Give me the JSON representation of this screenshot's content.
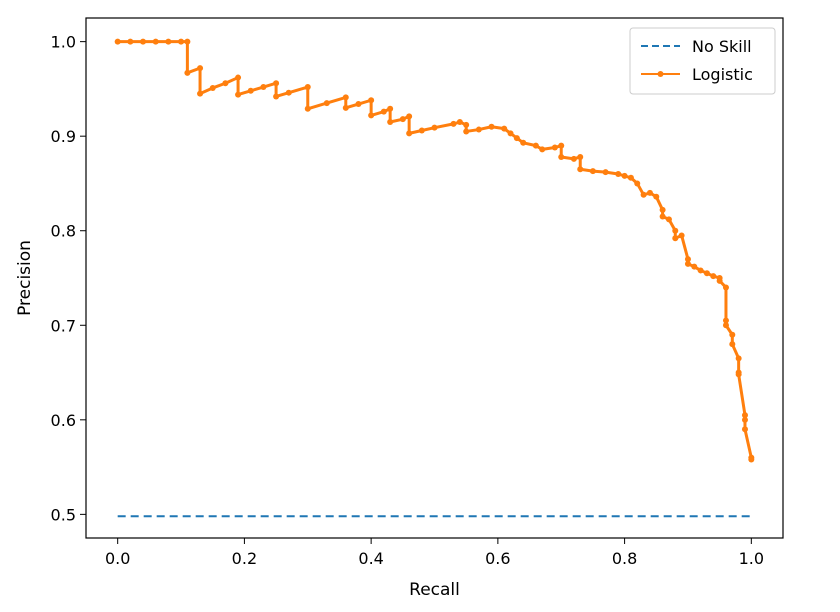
{
  "chart_data": {
    "type": "line",
    "xlabel": "Recall",
    "ylabel": "Precision",
    "xlim": [
      -0.05,
      1.05
    ],
    "ylim": [
      0.475,
      1.025
    ],
    "xticks": [
      0.0,
      0.2,
      0.4,
      0.6,
      0.8,
      1.0
    ],
    "xtick_labels": [
      "0.0",
      "0.2",
      "0.4",
      "0.6",
      "0.8",
      "1.0"
    ],
    "yticks": [
      0.5,
      0.6,
      0.7,
      0.8,
      0.9,
      1.0
    ],
    "ytick_labels": [
      "0.5",
      "0.6",
      "0.7",
      "0.8",
      "0.9",
      "1.0"
    ],
    "grid": false,
    "legend_position": "top-right",
    "series": [
      {
        "name": "No Skill",
        "style": "dashed",
        "color": "#1f77b4",
        "x": [
          0.0,
          1.0
        ],
        "y": [
          0.498,
          0.498
        ]
      },
      {
        "name": "Logistic",
        "style": "solid-marker",
        "color": "#ff7f0e",
        "x": [
          0.0,
          0.02,
          0.04,
          0.06,
          0.08,
          0.1,
          0.11,
          0.11,
          0.13,
          0.13,
          0.15,
          0.17,
          0.19,
          0.19,
          0.21,
          0.23,
          0.25,
          0.25,
          0.27,
          0.3,
          0.3,
          0.33,
          0.36,
          0.36,
          0.38,
          0.4,
          0.4,
          0.42,
          0.43,
          0.43,
          0.45,
          0.46,
          0.46,
          0.48,
          0.5,
          0.53,
          0.54,
          0.55,
          0.55,
          0.57,
          0.59,
          0.61,
          0.62,
          0.63,
          0.64,
          0.66,
          0.67,
          0.69,
          0.7,
          0.7,
          0.72,
          0.73,
          0.73,
          0.75,
          0.77,
          0.79,
          0.8,
          0.81,
          0.82,
          0.83,
          0.84,
          0.85,
          0.86,
          0.86,
          0.87,
          0.88,
          0.88,
          0.89,
          0.9,
          0.9,
          0.91,
          0.92,
          0.93,
          0.94,
          0.95,
          0.95,
          0.96,
          0.96,
          0.96,
          0.97,
          0.97,
          0.98,
          0.98,
          0.98,
          0.99,
          0.99,
          0.99,
          1.0,
          1.0
        ],
        "y": [
          1.0,
          1.0,
          1.0,
          1.0,
          1.0,
          1.0,
          1.0,
          0.967,
          0.972,
          0.945,
          0.951,
          0.956,
          0.962,
          0.944,
          0.948,
          0.952,
          0.956,
          0.942,
          0.946,
          0.952,
          0.929,
          0.935,
          0.941,
          0.93,
          0.934,
          0.938,
          0.922,
          0.926,
          0.929,
          0.915,
          0.918,
          0.921,
          0.903,
          0.906,
          0.909,
          0.913,
          0.915,
          0.912,
          0.905,
          0.907,
          0.91,
          0.908,
          0.903,
          0.898,
          0.893,
          0.89,
          0.886,
          0.888,
          0.89,
          0.878,
          0.876,
          0.878,
          0.865,
          0.863,
          0.862,
          0.86,
          0.858,
          0.856,
          0.85,
          0.838,
          0.84,
          0.836,
          0.822,
          0.815,
          0.812,
          0.8,
          0.792,
          0.795,
          0.77,
          0.765,
          0.762,
          0.758,
          0.755,
          0.752,
          0.75,
          0.747,
          0.74,
          0.705,
          0.7,
          0.69,
          0.68,
          0.665,
          0.65,
          0.648,
          0.605,
          0.6,
          0.59,
          0.56,
          0.558
        ]
      }
    ]
  }
}
